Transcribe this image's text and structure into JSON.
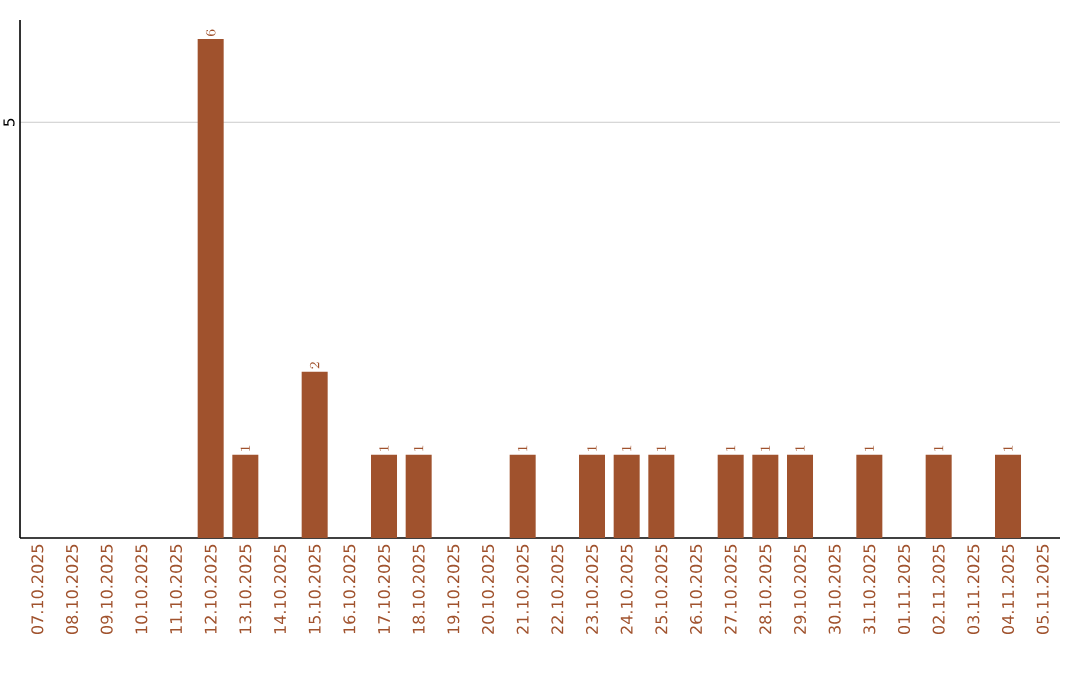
{
  "chart_data": {
    "type": "bar",
    "categories": [
      "07.10.2025",
      "08.10.2025",
      "09.10.2025",
      "10.10.2025",
      "11.10.2025",
      "12.10.2025",
      "13.10.2025",
      "14.10.2025",
      "15.10.2025",
      "16.10.2025",
      "17.10.2025",
      "18.10.2025",
      "19.10.2025",
      "20.10.2025",
      "21.10.2025",
      "22.10.2025",
      "23.10.2025",
      "24.10.2025",
      "25.10.2025",
      "26.10.2025",
      "27.10.2025",
      "28.10.2025",
      "29.10.2025",
      "30.10.2025",
      "31.10.2025",
      "01.11.2025",
      "02.11.2025",
      "03.11.2025",
      "04.11.2025",
      "05.11.2025"
    ],
    "values": [
      null,
      null,
      null,
      null,
      null,
      6,
      1,
      null,
      2,
      null,
      1,
      1,
      null,
      null,
      1,
      null,
      1,
      1,
      1,
      null,
      1,
      1,
      1,
      null,
      1,
      null,
      1,
      null,
      1,
      null
    ],
    "color": "#a0522d",
    "ylim": [
      0,
      6.23
    ],
    "yticks": [
      5
    ],
    "grid": "y",
    "data_labels": true
  }
}
